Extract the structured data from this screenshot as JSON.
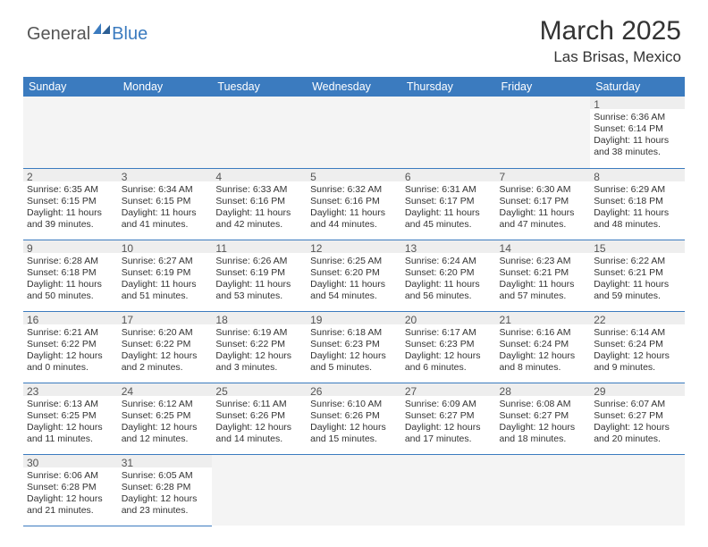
{
  "logo": {
    "text1": "General",
    "text2": "Blue",
    "icon_color": "#3b7bbf"
  },
  "header": {
    "month": "March 2025",
    "location": "Las Brisas, Mexico"
  },
  "colors": {
    "headerbar": "#3b7bbf",
    "band": "#eeeeee",
    "text": "#333333",
    "border": "#3b7bbf"
  },
  "daysOfWeek": [
    "Sunday",
    "Monday",
    "Tuesday",
    "Wednesday",
    "Thursday",
    "Friday",
    "Saturday"
  ],
  "startDayIndex": 6,
  "daysInMonth": 31,
  "cells": {
    "1": {
      "sunrise": "6:36 AM",
      "sunset": "6:14 PM",
      "dayH": 11,
      "dayM": 38
    },
    "2": {
      "sunrise": "6:35 AM",
      "sunset": "6:15 PM",
      "dayH": 11,
      "dayM": 39
    },
    "3": {
      "sunrise": "6:34 AM",
      "sunset": "6:15 PM",
      "dayH": 11,
      "dayM": 41
    },
    "4": {
      "sunrise": "6:33 AM",
      "sunset": "6:16 PM",
      "dayH": 11,
      "dayM": 42
    },
    "5": {
      "sunrise": "6:32 AM",
      "sunset": "6:16 PM",
      "dayH": 11,
      "dayM": 44
    },
    "6": {
      "sunrise": "6:31 AM",
      "sunset": "6:17 PM",
      "dayH": 11,
      "dayM": 45
    },
    "7": {
      "sunrise": "6:30 AM",
      "sunset": "6:17 PM",
      "dayH": 11,
      "dayM": 47
    },
    "8": {
      "sunrise": "6:29 AM",
      "sunset": "6:18 PM",
      "dayH": 11,
      "dayM": 48
    },
    "9": {
      "sunrise": "6:28 AM",
      "sunset": "6:18 PM",
      "dayH": 11,
      "dayM": 50
    },
    "10": {
      "sunrise": "6:27 AM",
      "sunset": "6:19 PM",
      "dayH": 11,
      "dayM": 51
    },
    "11": {
      "sunrise": "6:26 AM",
      "sunset": "6:19 PM",
      "dayH": 11,
      "dayM": 53
    },
    "12": {
      "sunrise": "6:25 AM",
      "sunset": "6:20 PM",
      "dayH": 11,
      "dayM": 54
    },
    "13": {
      "sunrise": "6:24 AM",
      "sunset": "6:20 PM",
      "dayH": 11,
      "dayM": 56
    },
    "14": {
      "sunrise": "6:23 AM",
      "sunset": "6:21 PM",
      "dayH": 11,
      "dayM": 57
    },
    "15": {
      "sunrise": "6:22 AM",
      "sunset": "6:21 PM",
      "dayH": 11,
      "dayM": 59
    },
    "16": {
      "sunrise": "6:21 AM",
      "sunset": "6:22 PM",
      "dayH": 12,
      "dayM": 0
    },
    "17": {
      "sunrise": "6:20 AM",
      "sunset": "6:22 PM",
      "dayH": 12,
      "dayM": 2
    },
    "18": {
      "sunrise": "6:19 AM",
      "sunset": "6:22 PM",
      "dayH": 12,
      "dayM": 3
    },
    "19": {
      "sunrise": "6:18 AM",
      "sunset": "6:23 PM",
      "dayH": 12,
      "dayM": 5
    },
    "20": {
      "sunrise": "6:17 AM",
      "sunset": "6:23 PM",
      "dayH": 12,
      "dayM": 6
    },
    "21": {
      "sunrise": "6:16 AM",
      "sunset": "6:24 PM",
      "dayH": 12,
      "dayM": 8
    },
    "22": {
      "sunrise": "6:14 AM",
      "sunset": "6:24 PM",
      "dayH": 12,
      "dayM": 9
    },
    "23": {
      "sunrise": "6:13 AM",
      "sunset": "6:25 PM",
      "dayH": 12,
      "dayM": 11
    },
    "24": {
      "sunrise": "6:12 AM",
      "sunset": "6:25 PM",
      "dayH": 12,
      "dayM": 12
    },
    "25": {
      "sunrise": "6:11 AM",
      "sunset": "6:26 PM",
      "dayH": 12,
      "dayM": 14
    },
    "26": {
      "sunrise": "6:10 AM",
      "sunset": "6:26 PM",
      "dayH": 12,
      "dayM": 15
    },
    "27": {
      "sunrise": "6:09 AM",
      "sunset": "6:27 PM",
      "dayH": 12,
      "dayM": 17
    },
    "28": {
      "sunrise": "6:08 AM",
      "sunset": "6:27 PM",
      "dayH": 12,
      "dayM": 18
    },
    "29": {
      "sunrise": "6:07 AM",
      "sunset": "6:27 PM",
      "dayH": 12,
      "dayM": 20
    },
    "30": {
      "sunrise": "6:06 AM",
      "sunset": "6:28 PM",
      "dayH": 12,
      "dayM": 21
    },
    "31": {
      "sunrise": "6:05 AM",
      "sunset": "6:28 PM",
      "dayH": 12,
      "dayM": 23
    }
  },
  "labels": {
    "sunrisePrefix": "Sunrise: ",
    "sunsetPrefix": "Sunset: ",
    "daylightPrefix": "Daylight: ",
    "hoursWord": " hours",
    "andWord": "and ",
    "minutesWord": " minutes."
  }
}
